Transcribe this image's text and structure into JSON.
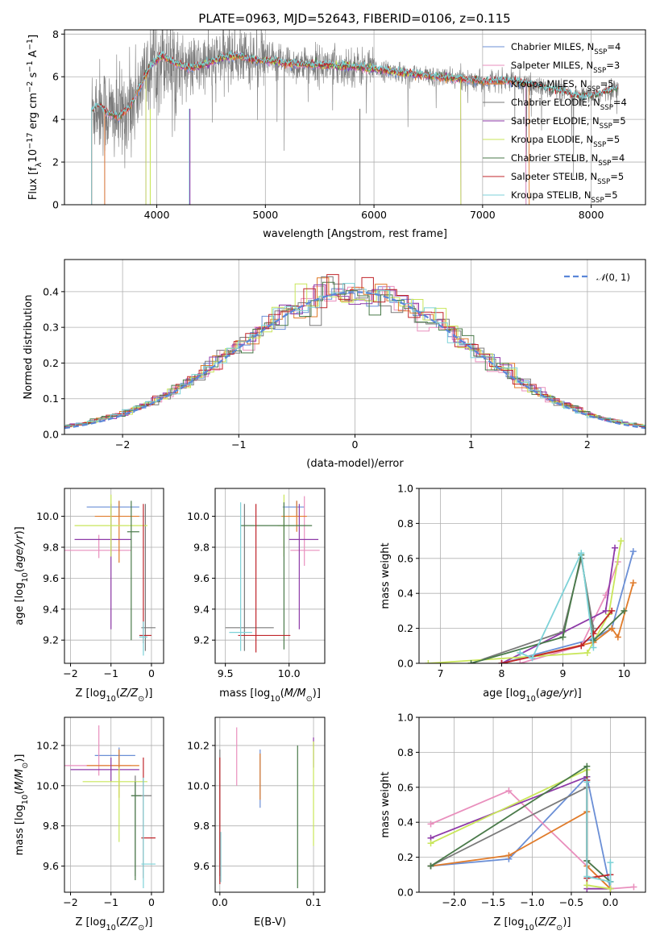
{
  "figure": {
    "title": "PLATE=0963, MJD=52643, FIBERID=0106, z=0.115"
  },
  "colors": {
    "Chabrier MILES": "#6b8fd6",
    "Salpeter MILES": "#e98fbd",
    "Kroupa MILES": "#e07b2a",
    "Chabrier ELODIE": "#7a7a7a",
    "Salpeter ELODIE": "#8e3aa8",
    "Kroupa ELODIE": "#c9e65a",
    "Chabrier STELIB": "#4a7a4a",
    "Salpeter STELIB": "#c0262b",
    "Kroupa STELIB": "#7dd2d8",
    "gaussian": "#5a86d8"
  },
  "chart_data": [
    {
      "id": "spectrum",
      "type": "line",
      "xlabel": "wavelength [Angstrom, rest frame]",
      "ylabel": "Flux [f_λ10^-17 erg cm^-2 s^-1 A^-1]",
      "xlim": [
        3150,
        8500
      ],
      "ylim": [
        0,
        8.2
      ],
      "xticks": [
        4000,
        5000,
        6000,
        7000,
        8000
      ],
      "yticks": [
        0,
        2,
        4,
        6,
        8
      ],
      "legend": [
        "Chabrier MILES, N_SSP=4",
        "Salpeter MILES, N_SSP=3",
        "Kroupa MILES, N_SSP=5",
        "Chabrier ELODIE, N_SSP=4",
        "Salpeter ELODIE, N_SSP=5",
        "Kroupa ELODIE, N_SSP=5",
        "Chabrier STELIB, N_SSP=4",
        "Salpeter STELIB, N_SSP=5",
        "Kroupa STELIB, N_SSP=5"
      ],
      "legend_loc": "upper-right",
      "model_continuum": [
        [
          3400,
          4.4
        ],
        [
          3450,
          4.7
        ],
        [
          3550,
          4.3
        ],
        [
          3650,
          4.1
        ],
        [
          3750,
          4.6
        ],
        [
          3850,
          5.6
        ],
        [
          3950,
          6.6
        ],
        [
          4050,
          7.0
        ],
        [
          4150,
          6.7
        ],
        [
          4300,
          6.4
        ],
        [
          4450,
          6.6
        ],
        [
          4600,
          6.9
        ],
        [
          4750,
          7.0
        ],
        [
          4900,
          6.8
        ],
        [
          5100,
          6.7
        ],
        [
          5300,
          6.6
        ],
        [
          5500,
          6.55
        ],
        [
          5800,
          6.5
        ],
        [
          6100,
          6.3
        ],
        [
          6400,
          6.1
        ],
        [
          6700,
          5.95
        ],
        [
          7000,
          5.8
        ],
        [
          7300,
          5.8
        ],
        [
          7500,
          5.55
        ],
        [
          7700,
          5.35
        ],
        [
          7900,
          5.05
        ],
        [
          8100,
          5.2
        ],
        [
          8250,
          5.5
        ]
      ]
    },
    {
      "id": "residuals",
      "type": "histogram",
      "xlabel": "(data-model)/error",
      "ylabel": "Normed distribution",
      "xlim": [
        -2.5,
        2.5
      ],
      "ylim": [
        0,
        0.49
      ],
      "xticks": [
        -2,
        -1,
        0,
        1,
        2
      ],
      "yticks": [
        0.0,
        0.1,
        0.2,
        0.3,
        0.4
      ],
      "legend": [
        "N(0,1)"
      ],
      "legend_loc": "upper-right",
      "gaussian": {
        "mean": 0,
        "sigma": 1
      }
    },
    {
      "id": "age-vs-Z",
      "type": "errorbar",
      "xlabel": "Z [log10(Z/Z⊙)]",
      "ylabel": "age [log10(age/yr)]",
      "xlim": [
        -2.15,
        0.3
      ],
      "ylim": [
        9.05,
        10.18
      ],
      "xticks": [
        -2,
        -1,
        0
      ],
      "yticks": [
        9.2,
        9.4,
        9.6,
        9.8,
        10.0
      ],
      "points": [
        {
          "m": "Chabrier MILES",
          "x": -0.8,
          "xe": [
            0.8,
            0.5
          ],
          "y": 10.06,
          "ye": [
            0.06,
            0.04
          ]
        },
        {
          "m": "Salpeter MILES",
          "x": -1.3,
          "xe": [
            0.9,
            0.8
          ],
          "y": 9.78,
          "ye": [
            0.05,
            0.1
          ]
        },
        {
          "m": "Kroupa MILES",
          "x": -0.8,
          "xe": [
            0.6,
            0.5
          ],
          "y": 10.0,
          "ye": [
            0.3,
            0.1
          ]
        },
        {
          "m": "Chabrier ELODIE",
          "x": -0.15,
          "xe": [
            0.1,
            0.25
          ],
          "y": 9.28,
          "ye": [
            0.15,
            0.8
          ]
        },
        {
          "m": "Salpeter ELODIE",
          "x": -1.0,
          "xe": [
            0.9,
            0.5
          ],
          "y": 9.85,
          "ye": [
            0.58,
            0.23
          ]
        },
        {
          "m": "Kroupa ELODIE",
          "x": -1.0,
          "xe": [
            0.9,
            0.9
          ],
          "y": 9.94,
          "ye": [
            0.2,
            0.2
          ]
        },
        {
          "m": "Chabrier STELIB",
          "x": -0.5,
          "xe": [
            0.1,
            0.2
          ],
          "y": 9.9,
          "ye": [
            0.7,
            0.2
          ]
        },
        {
          "m": "Salpeter STELIB",
          "x": -0.2,
          "xe": [
            0.1,
            0.2
          ],
          "y": 9.23,
          "ye": [
            0.05,
            0.85
          ]
        },
        {
          "m": "Kroupa STELIB",
          "x": -0.2,
          "xe": [
            0.1,
            0.1
          ],
          "y": 9.22,
          "ye": [
            0.12,
            0.1
          ]
        }
      ]
    },
    {
      "id": "age-vs-mass",
      "type": "errorbar",
      "xlabel": "mass [log10(M/M⊙)]",
      "ylabel": "",
      "xlim": [
        9.42,
        10.28
      ],
      "ylim": [
        9.05,
        10.18
      ],
      "xticks": [
        9.5,
        10.0
      ],
      "yticks": [
        9.2,
        9.4,
        9.6,
        9.8,
        10.0
      ],
      "points": [
        {
          "m": "Chabrier MILES",
          "x": 10.06,
          "xe": [
            0.11,
            0.06
          ],
          "y": 10.06,
          "ye": [
            0.06,
            0.04
          ]
        },
        {
          "m": "Salpeter MILES",
          "x": 10.12,
          "xe": [
            0.11,
            0.12
          ],
          "y": 9.78,
          "ye": [
            0.1,
            0.35
          ]
        },
        {
          "m": "Kroupa MILES",
          "x": 10.06,
          "xe": [
            0.12,
            0.08
          ],
          "y": 10.0,
          "ye": [
            0.1,
            0.1
          ]
        },
        {
          "m": "Chabrier ELODIE",
          "x": 9.65,
          "xe": [
            0.15,
            0.23
          ],
          "y": 9.28,
          "ye": [
            0.15,
            0.8
          ]
        },
        {
          "m": "Salpeter ELODIE",
          "x": 10.08,
          "xe": [
            0.08,
            0.15
          ],
          "y": 9.85,
          "ye": [
            0.58,
            0.23
          ]
        },
        {
          "m": "Kroupa ELODIE",
          "x": 9.96,
          "xe": [
            0.05,
            0.08
          ],
          "y": 9.94,
          "ye": [
            0.2,
            0.2
          ]
        },
        {
          "m": "Chabrier STELIB",
          "x": 9.96,
          "xe": [
            0.34,
            0.22
          ],
          "y": 9.94,
          "ye": [
            0.8,
            0.15
          ]
        },
        {
          "m": "Salpeter STELIB",
          "x": 9.74,
          "xe": [
            0.14,
            0.27
          ],
          "y": 9.23,
          "ye": [
            0.11,
            0.85
          ]
        },
        {
          "m": "Kroupa STELIB",
          "x": 9.62,
          "xe": [
            0.09,
            0.09
          ],
          "y": 9.25,
          "ye": [
            0.12,
            0.84
          ]
        }
      ]
    },
    {
      "id": "weight-vs-age",
      "type": "line",
      "xlabel": "age [log10(age/yr)]",
      "ylabel": "mass weight",
      "xlim": [
        6.65,
        10.35
      ],
      "ylim": [
        0,
        1.0
      ],
      "xticks": [
        7,
        8,
        9,
        10
      ],
      "yticks": [
        0.0,
        0.2,
        0.4,
        0.6,
        0.8,
        1.0
      ],
      "series": [
        {
          "m": "Chabrier MILES",
          "x": [
            8.0,
            9.5,
            9.8,
            10.15
          ],
          "y": [
            0.0,
            0.14,
            0.2,
            0.64
          ]
        },
        {
          "m": "Salpeter MILES",
          "x": [
            8.3,
            9.3,
            9.7,
            9.9
          ],
          "y": [
            0.0,
            0.1,
            0.39,
            0.58
          ]
        },
        {
          "m": "Kroupa MILES",
          "x": [
            8.0,
            9.5,
            9.8,
            9.9,
            10.15
          ],
          "y": [
            0.0,
            0.12,
            0.2,
            0.15,
            0.46
          ]
        },
        {
          "m": "Chabrier ELODIE",
          "x": [
            7.5,
            9.0,
            9.3,
            9.5
          ],
          "y": [
            0.0,
            0.18,
            0.6,
            0.2
          ]
        },
        {
          "m": "Salpeter ELODIE",
          "x": [
            8.0,
            9.7,
            9.85
          ],
          "y": [
            0.0,
            0.3,
            0.66
          ]
        },
        {
          "m": "Kroupa ELODIE",
          "x": [
            6.8,
            9.4,
            9.75,
            9.95
          ],
          "y": [
            0.0,
            0.06,
            0.28,
            0.7
          ]
        },
        {
          "m": "Chabrier STELIB",
          "x": [
            7.5,
            9.0,
            9.3,
            9.5,
            10.0
          ],
          "y": [
            0.0,
            0.15,
            0.62,
            0.13,
            0.3
          ]
        },
        {
          "m": "Salpeter STELIB",
          "x": [
            8.0,
            9.3,
            9.5,
            9.8
          ],
          "y": [
            0.0,
            0.1,
            0.17,
            0.3
          ]
        },
        {
          "m": "Kroupa STELIB",
          "x": [
            8.3,
            8.5,
            9.3,
            9.5
          ],
          "y": [
            0.06,
            0.03,
            0.63,
            0.09
          ]
        }
      ]
    },
    {
      "id": "mass-vs-Z",
      "type": "errorbar",
      "xlabel": "Z [log10(Z/Z⊙)]",
      "ylabel": "mass [log10(M/M⊙)]",
      "xlim": [
        -2.15,
        0.3
      ],
      "ylim": [
        9.47,
        10.34
      ],
      "xticks": [
        -2,
        -1,
        0
      ],
      "yticks": [
        9.6,
        9.8,
        10.0,
        10.2
      ],
      "points": [
        {
          "m": "Chabrier MILES",
          "x": -0.8,
          "xe": [
            0.6,
            0.4
          ],
          "y": 10.15,
          "ye": [
            0.06,
            0.04
          ]
        },
        {
          "m": "Salpeter MILES",
          "x": -1.3,
          "xe": [
            0.9,
            0.8
          ],
          "y": 10.1,
          "ye": [
            0.05,
            0.2
          ]
        },
        {
          "m": "Kroupa MILES",
          "x": -0.8,
          "xe": [
            0.8,
            0.5
          ],
          "y": 10.1,
          "ye": [
            0.16,
            0.08
          ]
        },
        {
          "m": "Chabrier ELODIE",
          "x": -0.4,
          "xe": [
            0.1,
            0.4
          ],
          "y": 9.95,
          "ye": [
            0.4,
            0.1
          ]
        },
        {
          "m": "Salpeter ELODIE",
          "x": -1.0,
          "xe": [
            1.0,
            0.7
          ],
          "y": 10.08,
          "ye": [
            0.06,
            0.06
          ]
        },
        {
          "m": "Kroupa ELODIE",
          "x": -0.8,
          "xe": [
            0.9,
            0.7
          ],
          "y": 10.02,
          "ye": [
            0.3,
            0.07
          ]
        },
        {
          "m": "Chabrier STELIB",
          "x": -0.4,
          "xe": [
            0.1,
            0.15
          ],
          "y": 9.95,
          "ye": [
            0.42,
            0.07
          ]
        },
        {
          "m": "Salpeter STELIB",
          "x": -0.2,
          "xe": [
            0.05,
            0.3
          ],
          "y": 9.74,
          "ye": [
            0.2,
            0.4
          ]
        },
        {
          "m": "Kroupa STELIB",
          "x": -0.2,
          "xe": [
            0.05,
            0.3
          ],
          "y": 9.61,
          "ye": [
            0.12,
            0.43
          ]
        }
      ]
    },
    {
      "id": "mass-vs-EBV",
      "type": "errorbar",
      "xlabel": "E(B-V)",
      "ylabel": "",
      "xlim": [
        -0.005,
        0.112
      ],
      "ylim": [
        9.47,
        10.34
      ],
      "xticks": [
        0.0,
        0.1
      ],
      "yticks": [
        9.6,
        9.8,
        10.0,
        10.2
      ],
      "points": [
        {
          "m": "Chabrier MILES",
          "x": 0.043,
          "ye": [
            0.04,
            0.25
          ],
          "y": 9.93
        },
        {
          "m": "Salpeter MILES",
          "x": 0.018,
          "ye": [
            0.1,
            0.19
          ],
          "y": 10.1
        },
        {
          "m": "Kroupa MILES",
          "x": 0.043,
          "ye": [
            0.03,
            0.2
          ],
          "y": 9.96
        },
        {
          "m": "Chabrier ELODIE",
          "x": 0.0,
          "ye": [
            0.45,
            0.18
          ],
          "y": 10.0
        },
        {
          "m": "Salpeter ELODIE",
          "x": 0.1,
          "ye": [
            0.05,
            0.1
          ],
          "y": 10.14
        },
        {
          "m": "Kroupa ELODIE",
          "x": 0.1,
          "ye": [
            0.4,
            0.12
          ],
          "y": 10.1
        },
        {
          "m": "Chabrier STELIB",
          "x": 0.083,
          "ye": [
            0.46,
            0.25
          ],
          "y": 9.95
        },
        {
          "m": "Salpeter STELIB",
          "x": 0.0,
          "ye": [
            0.53,
            0.1
          ],
          "y": 10.04
        },
        {
          "m": "Kroupa STELIB",
          "x": 0.001,
          "ye": [
            0.1,
            0.15
          ],
          "y": 9.62
        }
      ]
    },
    {
      "id": "weight-vs-Z",
      "type": "line",
      "xlabel": "Z [log10(Z/Z⊙)]",
      "ylabel": "mass weight",
      "xlim": [
        -2.45,
        0.45
      ],
      "ylim": [
        0,
        1.0
      ],
      "xticks": [
        -2.0,
        -1.5,
        -1.0,
        -0.5,
        0.0
      ],
      "yticks": [
        0.0,
        0.2,
        0.4,
        0.6,
        0.8,
        1.0
      ],
      "series": [
        {
          "m": "Chabrier MILES",
          "x": [
            -2.3,
            -1.3,
            -0.3,
            0.0
          ],
          "y": [
            0.15,
            0.19,
            0.66,
            0.02
          ]
        },
        {
          "m": "Salpeter MILES",
          "x": [
            -2.3,
            -1.3,
            0.0,
            0.3
          ],
          "y": [
            0.39,
            0.58,
            0.02,
            0.03
          ]
        },
        {
          "m": "Kroupa MILES",
          "x": [
            -2.3,
            -1.3,
            -0.3,
            -0.3,
            0.0
          ],
          "y": [
            0.15,
            0.21,
            0.46,
            0.15,
            0.02
          ]
        },
        {
          "m": "Chabrier ELODIE",
          "x": [
            -2.3,
            -0.3,
            -0.3,
            0.0
          ],
          "y": [
            0.15,
            0.6,
            0.18,
            0.06
          ]
        },
        {
          "m": "Salpeter ELODIE",
          "x": [
            -2.3,
            -0.3,
            -0.3,
            0.0
          ],
          "y": [
            0.31,
            0.66,
            0.02,
            0.02
          ]
        },
        {
          "m": "Kroupa ELODIE",
          "x": [
            -2.3,
            -0.3,
            -0.3,
            0.0
          ],
          "y": [
            0.28,
            0.7,
            0.04,
            0.02
          ]
        },
        {
          "m": "Chabrier STELIB",
          "x": [
            -2.3,
            -0.3,
            -0.3,
            0.0
          ],
          "y": [
            0.15,
            0.72,
            0.18,
            0.06
          ]
        },
        {
          "m": "Salpeter STELIB",
          "x": [
            -0.3,
            -0.3,
            0.0
          ],
          "y": [
            0.64,
            0.08,
            0.1
          ]
        },
        {
          "m": "Kroupa STELIB",
          "x": [
            -0.3,
            -0.3,
            0.0,
            0.0
          ],
          "y": [
            0.63,
            0.09,
            0.06,
            0.17
          ]
        }
      ]
    }
  ]
}
